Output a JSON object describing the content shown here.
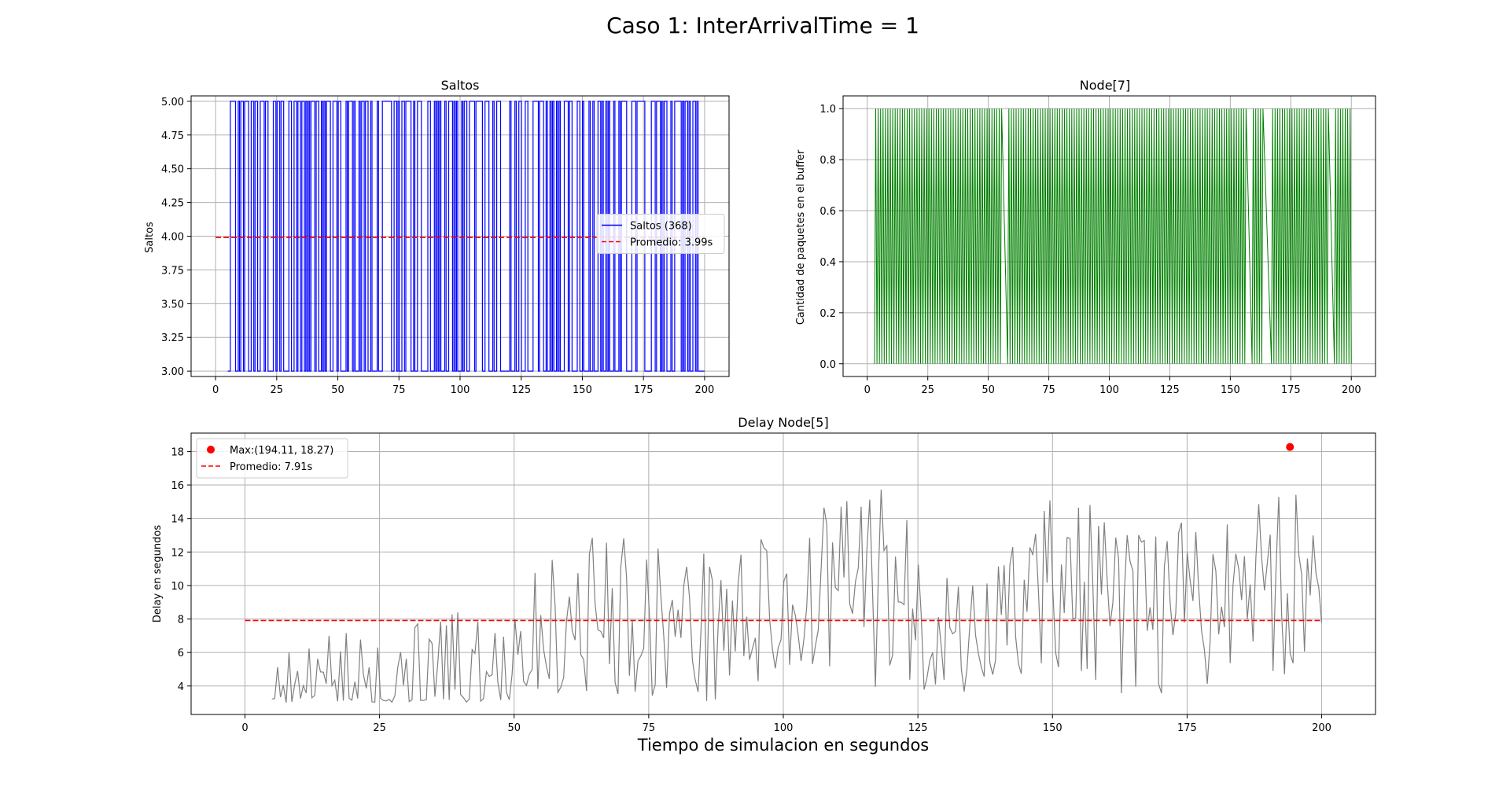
{
  "figure": {
    "suptitle": "Caso 1: InterArrivalTime = 1",
    "shared_xlabel": "Tiempo de simulacion en segundos"
  },
  "chart_data": [
    {
      "type": "line",
      "title": "Saltos",
      "xlabel": "",
      "ylabel": "Saltos",
      "xlim": [
        -10,
        210
      ],
      "ylim": [
        2.96,
        5.04
      ],
      "xticks": [
        0,
        25,
        50,
        75,
        100,
        125,
        150,
        175,
        200
      ],
      "xtick_labels": [
        "0",
        "25",
        "50",
        "75",
        "100",
        "125",
        "150",
        "175",
        "200"
      ],
      "yticks": [
        3.0,
        3.25,
        3.5,
        3.75,
        4.0,
        4.25,
        4.5,
        4.75,
        5.0
      ],
      "ytick_labels": [
        "3.00",
        "3.25",
        "3.50",
        "3.75",
        "4.00",
        "4.25",
        "4.50",
        "4.75",
        "5.00"
      ],
      "grid": true,
      "legend_position": "center-right",
      "series": [
        {
          "name": "Saltos (368)",
          "color": "#0000ff",
          "style": "step",
          "points_count": 368,
          "x_range": [
            5,
            200
          ],
          "levels": [
            3,
            5
          ],
          "seed": 11
        },
        {
          "name": "Promedio: 3.99s",
          "color": "#ff0000",
          "style": "dashed",
          "x": [
            0,
            200
          ],
          "y": [
            3.99,
            3.99
          ]
        }
      ]
    },
    {
      "type": "line",
      "title": "Node[7]",
      "xlabel": "",
      "ylabel": "Cantidad de paquetes en el buffer",
      "xlim": [
        -10,
        210
      ],
      "ylim": [
        -0.05,
        1.05
      ],
      "xticks": [
        0,
        25,
        50,
        75,
        100,
        125,
        150,
        175,
        200
      ],
      "xtick_labels": [
        "0",
        "25",
        "50",
        "75",
        "100",
        "125",
        "150",
        "175",
        "200"
      ],
      "yticks": [
        0.0,
        0.2,
        0.4,
        0.6,
        0.8,
        1.0
      ],
      "ytick_labels": [
        "0.0",
        "0.2",
        "0.4",
        "0.6",
        "0.8",
        "1.0"
      ],
      "grid": true,
      "legend_position": "none",
      "series": [
        {
          "name": "",
          "color": "#008000",
          "style": "oscillating",
          "x_range": [
            3,
            200
          ],
          "levels": [
            0,
            1
          ],
          "gaps": [
            [
              55,
              58
            ],
            [
              156,
              159
            ],
            [
              163,
              167
            ],
            [
              190,
              193
            ]
          ],
          "seed": 7
        }
      ]
    },
    {
      "type": "line",
      "title": "Delay Node[5]",
      "xlabel": "Tiempo de simulacion en segundos",
      "ylabel": "Delay en segundos",
      "xlim": [
        -10,
        210
      ],
      "ylim": [
        2.3,
        19.1
      ],
      "xticks": [
        0,
        25,
        50,
        75,
        100,
        125,
        150,
        175,
        200
      ],
      "xtick_labels": [
        "0",
        "25",
        "50",
        "75",
        "100",
        "125",
        "150",
        "175",
        "200"
      ],
      "yticks": [
        4,
        6,
        8,
        10,
        12,
        14,
        16,
        18
      ],
      "ytick_labels": [
        "4",
        "6",
        "8",
        "10",
        "12",
        "14",
        "16",
        "18"
      ],
      "grid": true,
      "legend_position": "upper-left",
      "series": [
        {
          "name": "",
          "color": "#808080",
          "style": "noisy",
          "x_range": [
            5,
            200
          ],
          "points_count": 368,
          "min": 3.0,
          "envelope": [
            [
              5,
              4.0,
              2.5
            ],
            [
              40,
              5.0,
              3.5
            ],
            [
              50,
              6.5,
              4.5
            ],
            [
              65,
              8.5,
              5.0
            ],
            [
              85,
              7.5,
              4.5
            ],
            [
              100,
              8.5,
              5.0
            ],
            [
              115,
              10.5,
              6.5
            ],
            [
              125,
              8.5,
              5.0
            ],
            [
              135,
              6.5,
              3.5
            ],
            [
              150,
              10.5,
              6.0
            ],
            [
              165,
              8.0,
              5.0
            ],
            [
              180,
              9.5,
              5.5
            ],
            [
              195,
              10.5,
              6.5
            ],
            [
              200,
              9.5,
              5.5
            ]
          ],
          "seed": 5
        },
        {
          "name": "Max:(194.11, 18.27)",
          "color": "#ff0000",
          "style": "marker",
          "x": [
            194.11
          ],
          "y": [
            18.27
          ]
        },
        {
          "name": "Promedio: 7.91s",
          "color": "#ff0000",
          "style": "dashed",
          "x": [
            0,
            200
          ],
          "y": [
            7.91,
            7.91
          ]
        }
      ]
    }
  ]
}
